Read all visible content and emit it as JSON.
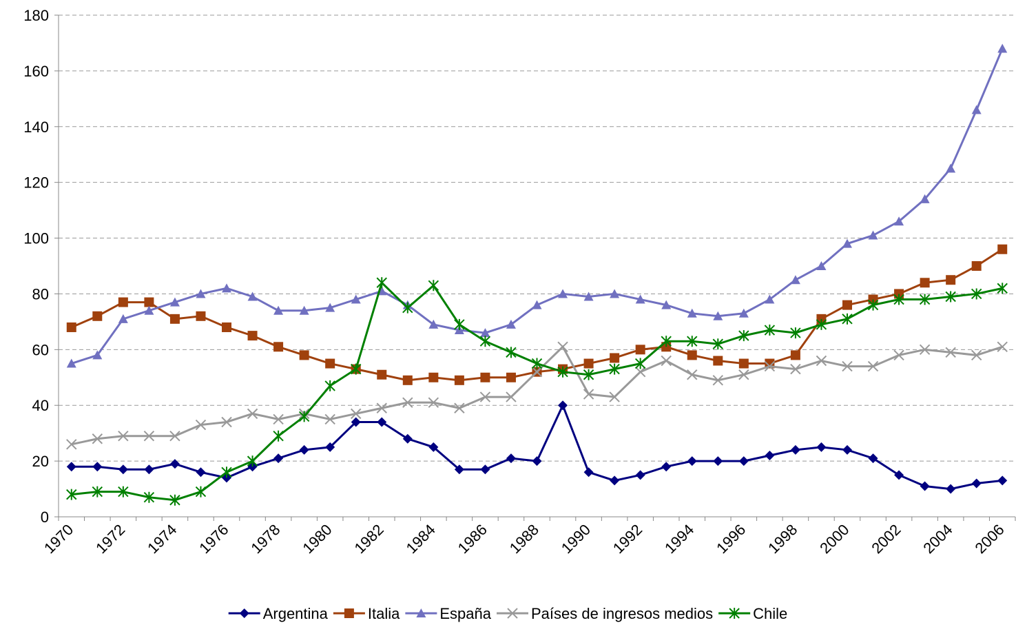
{
  "chart_data": {
    "type": "line",
    "categories": [
      "1970",
      null,
      "1972",
      null,
      "1974",
      null,
      "1976",
      null,
      "1978",
      null,
      "1980",
      null,
      "1982",
      null,
      "1984",
      null,
      "1986",
      null,
      "1988",
      null,
      "1990",
      null,
      "1992",
      null,
      "1994",
      null,
      "1996",
      null,
      "1998",
      null,
      "2000",
      null,
      "2002",
      null,
      "2004",
      null,
      "2006"
    ],
    "series": [
      {
        "name": "Argentina",
        "color": "#000080",
        "marker": "diamond",
        "values": [
          18,
          18,
          17,
          17,
          19,
          16,
          14,
          18,
          21,
          24,
          25,
          34,
          34,
          28,
          25,
          17,
          17,
          21,
          20,
          40,
          16,
          13,
          15,
          18,
          20,
          20,
          20,
          22,
          24,
          25,
          24,
          21,
          15,
          11,
          10,
          12,
          13
        ]
      },
      {
        "name": "Italia",
        "color": "#a0410d",
        "marker": "square",
        "values": [
          68,
          72,
          77,
          77,
          71,
          72,
          68,
          65,
          61,
          58,
          55,
          53,
          51,
          49,
          50,
          49,
          50,
          50,
          52,
          53,
          55,
          57,
          60,
          61,
          58,
          56,
          55,
          55,
          58,
          71,
          76,
          78,
          80,
          84,
          85,
          90,
          96
        ]
      },
      {
        "name": "España",
        "color": "#7070c0",
        "marker": "triangle",
        "values": [
          55,
          58,
          71,
          74,
          77,
          80,
          82,
          79,
          74,
          74,
          75,
          78,
          81,
          76,
          69,
          67,
          66,
          69,
          76,
          80,
          79,
          80,
          78,
          76,
          73,
          72,
          73,
          78,
          85,
          90,
          98,
          101,
          106,
          114,
          125,
          146,
          168
        ]
      },
      {
        "name": "Países de ingresos medios",
        "color": "#999999",
        "marker": "x",
        "values": [
          26,
          28,
          29,
          29,
          29,
          33,
          34,
          37,
          35,
          37,
          35,
          37,
          39,
          41,
          41,
          39,
          43,
          43,
          52,
          61,
          44,
          43,
          52,
          56,
          51,
          49,
          51,
          54,
          53,
          56,
          54,
          54,
          58,
          60,
          59,
          58,
          61
        ]
      },
      {
        "name": "Chile",
        "color": "#008000",
        "marker": "asterisk",
        "values": [
          8,
          9,
          9,
          7,
          6,
          9,
          16,
          20,
          29,
          36,
          47,
          53,
          84,
          75,
          83,
          69,
          63,
          59,
          55,
          52,
          51,
          53,
          55,
          63,
          63,
          62,
          65,
          67,
          66,
          69,
          71,
          76,
          78,
          78,
          79,
          80,
          82
        ]
      }
    ],
    "ylim": [
      0,
      180
    ],
    "yticks": [
      0,
      20,
      40,
      60,
      80,
      100,
      120,
      140,
      160,
      180
    ],
    "grid": true,
    "legend": "bottom"
  }
}
